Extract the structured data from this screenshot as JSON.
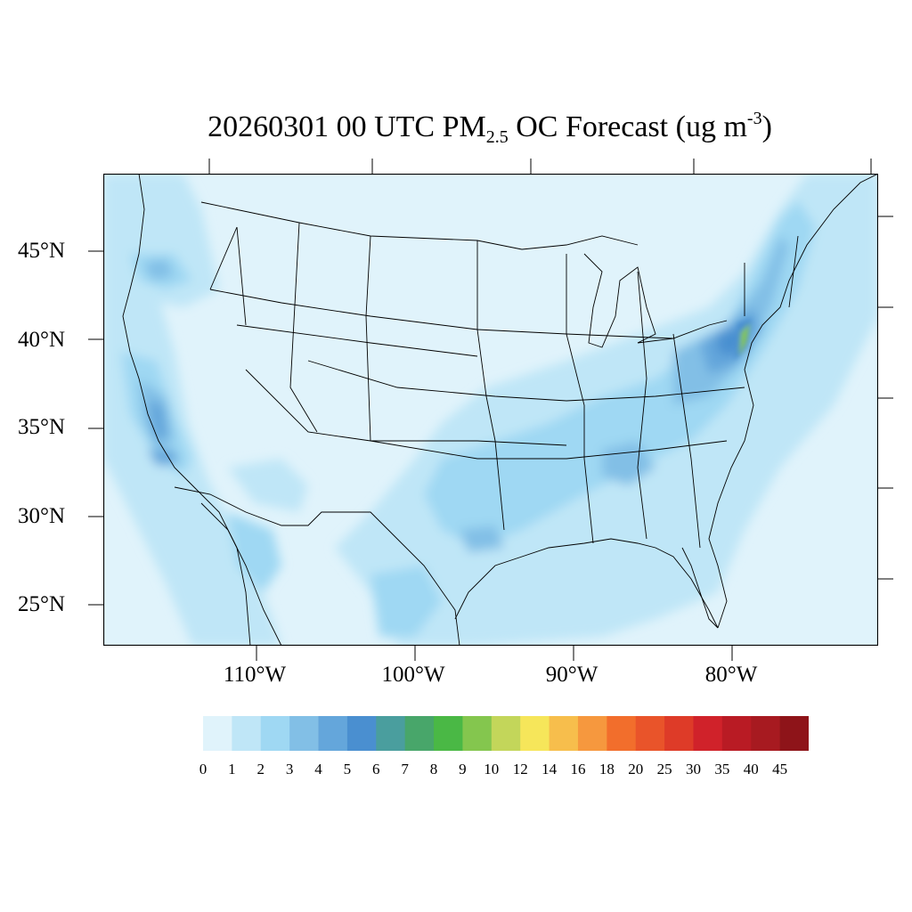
{
  "title": {
    "prefix": "20260301 00 UTC PM",
    "subscript": "2.5",
    "middle": " OC Forecast (ug m",
    "superscript": "-3",
    "suffix": ")"
  },
  "lat_labels": [
    "45°N",
    "40°N",
    "35°N",
    "30°N",
    "25°N"
  ],
  "lon_labels": [
    "110°W",
    "100°W",
    "90°W",
    "80°W"
  ],
  "colorbar": {
    "labels": [
      "0",
      "1",
      "2",
      "3",
      "4",
      "5",
      "6",
      "7",
      "8",
      "9",
      "10",
      "12",
      "14",
      "16",
      "18",
      "20",
      "25",
      "30",
      "35",
      "40",
      "45"
    ],
    "colors": [
      "#e0f3fb",
      "#bfe6f7",
      "#9fd8f3",
      "#82bfe6",
      "#64a6db",
      "#4a8fd0",
      "#4a9e9e",
      "#48a66a",
      "#4ab845",
      "#84c64e",
      "#c3d65a",
      "#f6e65a",
      "#f7be4c",
      "#f6983e",
      "#f26e2c",
      "#e9542a",
      "#de3b28",
      "#d0222a",
      "#b91b24",
      "#a71a20",
      "#8e1419"
    ]
  },
  "map_colors": {
    "background": "#e0f3fb",
    "level1": "#bfe6f7",
    "level2": "#9fd8f3",
    "level3": "#82bfe6",
    "level4": "#64a6db",
    "level5": "#4a8fd0",
    "level8": "#84c64e"
  }
}
